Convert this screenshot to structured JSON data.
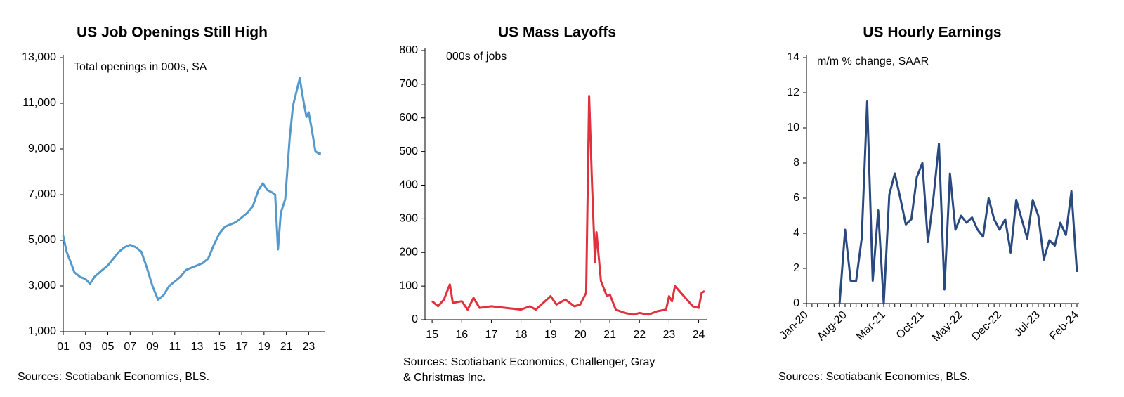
{
  "chart_data": [
    {
      "type": "line",
      "title": "US Job Openings Still High",
      "note": "Total openings in 000s, SA",
      "source": [
        "Sources: Scotiabank Economics, BLS."
      ],
      "color": "#5599cc",
      "x": [
        1.0,
        1.3,
        1.7,
        2.0,
        2.5,
        3.0,
        3.4,
        3.8,
        4.5,
        5.0,
        5.5,
        6.0,
        6.5,
        7.0,
        7.5,
        8.0,
        8.5,
        9.0,
        9.5,
        10.0,
        10.5,
        11.0,
        11.5,
        12.0,
        12.5,
        13.0,
        13.5,
        14.0,
        14.5,
        15.0,
        15.5,
        16.0,
        16.5,
        17.0,
        17.5,
        18.0,
        18.5,
        18.9,
        19.3,
        19.7,
        20.0,
        20.25,
        20.5,
        20.9,
        21.3,
        21.6,
        21.9,
        22.2,
        22.5,
        22.8,
        23.0,
        23.3,
        23.6,
        23.9,
        24.1
      ],
      "values": [
        5200,
        4500,
        4000,
        3600,
        3400,
        3300,
        3100,
        3400,
        3700,
        3900,
        4200,
        4500,
        4700,
        4800,
        4700,
        4500,
        3800,
        3000,
        2400,
        2600,
        3000,
        3200,
        3400,
        3700,
        3800,
        3900,
        4000,
        4200,
        4800,
        5300,
        5600,
        5700,
        5800,
        6000,
        6200,
        6500,
        7200,
        7500,
        7200,
        7100,
        7000,
        4600,
        6200,
        6800,
        9500,
        10900,
        11500,
        12100,
        11200,
        10400,
        10600,
        9800,
        8900,
        8800,
        8800
      ],
      "xlim": [
        1,
        24.3
      ],
      "xticks": [
        {
          "value": 1,
          "label": "01"
        },
        {
          "value": 3,
          "label": "03"
        },
        {
          "value": 5,
          "label": "05"
        },
        {
          "value": 7,
          "label": "07"
        },
        {
          "value": 9,
          "label": "09"
        },
        11,
        13,
        15,
        17,
        19,
        21,
        23
      ],
      "ylim": [
        1000,
        13000
      ],
      "yticks": [
        {
          "value": 1000,
          "label": "1,000"
        },
        {
          "value": 3000,
          "label": "3,000"
        },
        {
          "value": 5000,
          "label": "5,000"
        },
        {
          "value": 7000,
          "label": "7,000"
        },
        {
          "value": 9000,
          "label": "9,000"
        },
        {
          "value": 11000,
          "label": "11,000"
        },
        {
          "value": 13000,
          "label": "13,000"
        }
      ]
    },
    {
      "type": "line",
      "title": "US Mass Layoffs",
      "note": "000s of jobs",
      "source": [
        "Sources: Scotiabank Economics, Challenger, Gray",
        "& Christmas Inc."
      ],
      "color": "#e0323c",
      "x": [
        15.0,
        15.2,
        15.4,
        15.6,
        15.7,
        16.0,
        16.2,
        16.4,
        16.6,
        17.0,
        17.5,
        18.0,
        18.3,
        18.5,
        19.0,
        19.2,
        19.5,
        19.8,
        20.0,
        20.2,
        20.3,
        20.4,
        20.5,
        20.55,
        20.7,
        20.9,
        21.0,
        21.2,
        21.5,
        21.8,
        22.0,
        22.3,
        22.6,
        22.9,
        23.0,
        23.1,
        23.2,
        23.4,
        23.6,
        23.8,
        24.0,
        24.1,
        24.2
      ],
      "values": [
        55,
        40,
        60,
        105,
        50,
        55,
        30,
        65,
        35,
        40,
        35,
        30,
        40,
        30,
        70,
        45,
        60,
        40,
        45,
        80,
        665,
        400,
        170,
        260,
        115,
        70,
        75,
        30,
        20,
        15,
        20,
        15,
        25,
        30,
        70,
        55,
        100,
        80,
        60,
        40,
        35,
        80,
        85
      ],
      "xlim": [
        14.76,
        24.2
      ],
      "xticks": [
        15,
        16,
        17,
        18,
        19,
        20,
        21,
        22,
        23,
        24
      ],
      "ylim": [
        0,
        800
      ],
      "yticks": [
        0,
        100,
        200,
        300,
        400,
        500,
        600,
        700,
        800
      ]
    },
    {
      "type": "line",
      "title": "US Hourly Earnings",
      "note": "m/m % change, SAAR",
      "source": [
        "Sources: Scotiabank Economics, BLS."
      ],
      "color": "#2a4a7f",
      "categories": [
        "Jan-20",
        null,
        null,
        null,
        null,
        null,
        null,
        "Aug-20",
        null,
        null,
        null,
        null,
        null,
        null,
        "Mar-21",
        null,
        null,
        null,
        null,
        null,
        null,
        "Oct-21",
        null,
        null,
        null,
        null,
        null,
        null,
        "May-22",
        null,
        null,
        null,
        null,
        null,
        null,
        "Dec-22",
        null,
        null,
        null,
        null,
        null,
        null,
        "Jul-23",
        null,
        null,
        null,
        null,
        null,
        null,
        "Feb-24"
      ],
      "values": [
        null,
        null,
        null,
        null,
        null,
        null,
        0,
        4.2,
        1.3,
        1.3,
        3.7,
        11.5,
        1.3,
        5.3,
        0,
        6.2,
        7.4,
        6.0,
        4.5,
        4.8,
        7.2,
        8.0,
        3.5,
        6.0,
        9.1,
        0.8,
        7.4,
        4.2,
        5.0,
        4.6,
        4.9,
        4.2,
        3.8,
        6.0,
        4.8,
        4.2,
        4.8,
        2.9,
        5.9,
        4.8,
        3.7,
        5.9,
        5.0,
        2.5,
        3.6,
        3.3,
        4.6,
        3.9,
        6.4,
        1.8
      ],
      "ylim": [
        0,
        14
      ],
      "yticks": [
        0,
        2,
        4,
        6,
        8,
        10,
        12,
        14
      ]
    }
  ]
}
